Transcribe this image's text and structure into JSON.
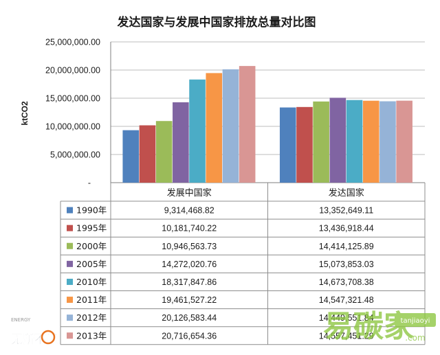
{
  "chart_data": {
    "type": "bar",
    "title": "发达国家与发展中国家排放总量对比图",
    "ylabel": "ktCO2",
    "xlabel": "",
    "ylim": [
      0,
      25000000
    ],
    "yticks": [
      "-",
      "5,000,000.00",
      "10,000,000.00",
      "15,000,000.00",
      "20,000,000.00",
      "25,000,000.00"
    ],
    "grid": true,
    "legend_placement": "data-table",
    "categories": [
      "发展中国家",
      "发达国家"
    ],
    "series": [
      {
        "name": "1990年",
        "color": "#4F81BD",
        "values": [
          9314468.82,
          13352649.11
        ],
        "labels": [
          "9,314,468.82",
          "13,352,649.11"
        ]
      },
      {
        "name": "1995年",
        "color": "#C0504D",
        "values": [
          10181740.22,
          13436918.44
        ],
        "labels": [
          "10,181,740.22",
          "13,436,918.44"
        ]
      },
      {
        "name": "2000年",
        "color": "#9BBB59",
        "values": [
          10946563.73,
          14414125.89
        ],
        "labels": [
          "10,946,563.73",
          "14,414,125.89"
        ]
      },
      {
        "name": "2005年",
        "color": "#8064A2",
        "values": [
          14272020.76,
          15073853.03
        ],
        "labels": [
          "14,272,020.76",
          "15,073,853.03"
        ]
      },
      {
        "name": "2010年",
        "color": "#4BACC6",
        "values": [
          18317847.86,
          14673708.38
        ],
        "labels": [
          "18,317,847.86",
          "14,673,708.38"
        ]
      },
      {
        "name": "2011年",
        "color": "#F79646",
        "values": [
          19461527.22,
          14547321.48
        ],
        "labels": [
          "19,461,527.22",
          "14,547,321.48"
        ]
      },
      {
        "name": "2012年",
        "color": "#95B3D7",
        "values": [
          20126583.44,
          14449551.84
        ],
        "labels": [
          "20,126,583.44",
          "14,449,551.84"
        ]
      },
      {
        "name": "2013年",
        "color": "#D99694",
        "values": [
          20716654.36,
          14557451.29
        ],
        "labels": [
          "20,716,654.36",
          "14,557,451.29"
        ]
      }
    ]
  },
  "watermarks": {
    "left_small": "ENERGY",
    "left_logo": "无所不能",
    "right_logo": "易碳家",
    "right_url": "tanjiaoyi",
    "right_domain": ".com"
  }
}
